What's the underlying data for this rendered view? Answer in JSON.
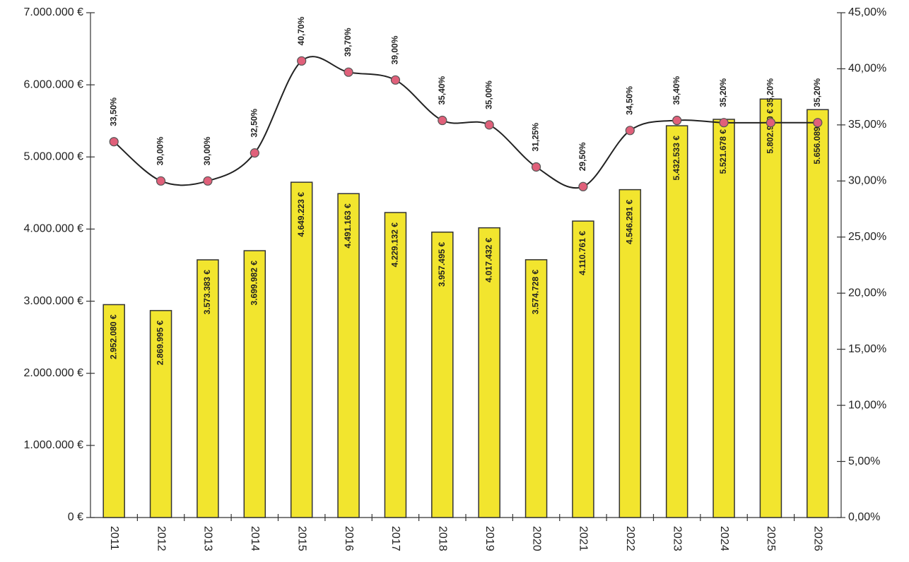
{
  "chart_data": {
    "type": "bar_line",
    "categories": [
      "2011",
      "2012",
      "2013",
      "2014",
      "2015",
      "2016",
      "2017",
      "2018",
      "2019",
      "2020",
      "2021",
      "2022",
      "2023",
      "2024",
      "2025",
      "2026"
    ],
    "series": [
      {
        "type": "bar",
        "color": "#f2e52e",
        "values": [
          2952080,
          2869995,
          3573383,
          3699982,
          4649223,
          4491163,
          4229132,
          3957495,
          4017432,
          3574728,
          4110761,
          4546291,
          5432533,
          5521678,
          5802980,
          5656089
        ],
        "value_labels": [
          "2.952.080 €",
          "2.869.995 €",
          "3.573.383 €",
          "3.699.982 €",
          "4.649.223 €",
          "4.491.163 €",
          "4.229.132 €",
          "3.957.495 €",
          "4.017.432 €",
          "3.574.728 €",
          "4.110.761 €",
          "4.546.291 €",
          "5.432.533 €",
          "5.521.678 €",
          "5.802.980 €",
          "5.656.089 €"
        ]
      },
      {
        "type": "line",
        "axis": "y2",
        "color": "#e0607a",
        "values": [
          33.5,
          30,
          30,
          32.5,
          40.7,
          39.7,
          39,
          35.4,
          35,
          31.25,
          29.5,
          34.5,
          35.4,
          35.2,
          35.2,
          35.2
        ],
        "value_labels": [
          "33,50%",
          "30,00%",
          "30,00%",
          "32,50%",
          "40,70%",
          "39,70%",
          "39,00%",
          "35,40%",
          "35,00%",
          "31,25%",
          "29,50%",
          "34,50%",
          "35,40%",
          "35,20%",
          "35,20%",
          "35,20%"
        ]
      }
    ],
    "ylim": [
      0,
      7000000
    ],
    "yticks": [
      {
        "value": 0,
        "label": "0 €"
      },
      {
        "value": 1000000,
        "label": "1.000.000 €"
      },
      {
        "value": 2000000,
        "label": "2.000.000 €"
      },
      {
        "value": 3000000,
        "label": "3.000.000 €"
      },
      {
        "value": 4000000,
        "label": "4.000.000 €"
      },
      {
        "value": 5000000,
        "label": "5.000.000 €"
      },
      {
        "value": 6000000,
        "label": "6.000.000 €"
      },
      {
        "value": 7000000,
        "label": "7.000.000 €"
      }
    ],
    "y2lim": [
      0,
      45
    ],
    "y2ticks": [
      {
        "value": 0,
        "label": "0,00%"
      },
      {
        "value": 5,
        "label": "5,00%"
      },
      {
        "value": 10,
        "label": "10,00%"
      },
      {
        "value": 15,
        "label": "15,00%"
      },
      {
        "value": 20,
        "label": "20,00%"
      },
      {
        "value": 25,
        "label": "25,00%"
      },
      {
        "value": 30,
        "label": "30,00%"
      },
      {
        "value": 35,
        "label": "35,00%"
      },
      {
        "value": 40,
        "label": "40,00%"
      },
      {
        "value": 45,
        "label": "45,00%"
      }
    ],
    "grid": false
  }
}
